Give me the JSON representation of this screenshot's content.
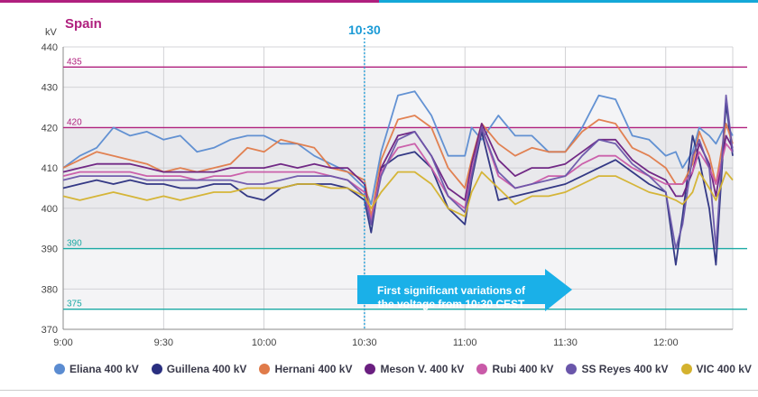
{
  "chart_data": {
    "type": "line",
    "title": "Spain",
    "ylabel": "kV",
    "xlabel": "",
    "ylim": [
      370,
      440
    ],
    "xlim_minutes": [
      0,
      200
    ],
    "grid": true,
    "legend_placement": "bottom",
    "y_ticks": [
      "370",
      "380",
      "390",
      "400",
      "410",
      "420",
      "430",
      "440"
    ],
    "x_ticks": [
      {
        "label": "9:00",
        "minute": 0
      },
      {
        "label": "9:30",
        "minute": 30
      },
      {
        "label": "10:00",
        "minute": 60
      },
      {
        "label": "10:30",
        "minute": 90
      },
      {
        "label": "11:00",
        "minute": 120
      },
      {
        "label": "11:30",
        "minute": 150
      },
      {
        "label": "12:00",
        "minute": 180
      }
    ],
    "reference_lines": [
      {
        "label": "435",
        "value": 435,
        "color": "#b0207e"
      },
      {
        "label": "420",
        "value": 420,
        "color": "#b0207e"
      },
      {
        "label": "390",
        "value": 390,
        "color": "#1aa9a4"
      },
      {
        "label": "375",
        "value": 375,
        "color": "#1aa9a4"
      }
    ],
    "event": {
      "label": "10:30",
      "minute": 90,
      "color": "#1a9ad6"
    },
    "annotation": {
      "lines": [
        "First significant variations of",
        "the voltage from 10:30 CEST"
      ],
      "color": "#1ab0e8",
      "text_color": "#ffffff"
    },
    "x_unit": "minutes after 9:00",
    "series": [
      {
        "name": "Eliana 400 kV",
        "color": "#5b8cd1",
        "x": [
          0,
          5,
          10,
          15,
          20,
          25,
          30,
          35,
          40,
          45,
          50,
          55,
          60,
          65,
          70,
          75,
          80,
          85,
          90,
          92,
          95,
          100,
          105,
          110,
          115,
          120,
          122,
          125,
          130,
          135,
          140,
          145,
          150,
          155,
          160,
          165,
          170,
          175,
          180,
          183,
          185,
          188,
          190,
          193,
          195,
          198,
          200
        ],
        "y": [
          410,
          413,
          415,
          420,
          418,
          419,
          417,
          418,
          414,
          415,
          417,
          418,
          418,
          416,
          416,
          413,
          411,
          409,
          405,
          401,
          414,
          428,
          429,
          423,
          413,
          413,
          420,
          417,
          423,
          418,
          418,
          414,
          414,
          420,
          428,
          427,
          418,
          417,
          413,
          414,
          410,
          414,
          420,
          418,
          416,
          421,
          418
        ]
      },
      {
        "name": "Guillena 400 kV",
        "color": "#2a2f80",
        "x": [
          0,
          5,
          10,
          15,
          20,
          25,
          30,
          35,
          40,
          45,
          50,
          55,
          60,
          65,
          70,
          75,
          80,
          85,
          90,
          92,
          95,
          100,
          105,
          110,
          115,
          120,
          122,
          125,
          130,
          135,
          140,
          145,
          150,
          155,
          160,
          165,
          170,
          175,
          180,
          183,
          185,
          188,
          190,
          193,
          195,
          198,
          200
        ],
        "y": [
          405,
          406,
          407,
          406,
          407,
          406,
          406,
          405,
          405,
          406,
          406,
          403,
          402,
          405,
          406,
          406,
          406,
          405,
          402,
          394,
          410,
          413,
          414,
          410,
          400,
          396,
          407,
          419,
          402,
          403,
          404,
          405,
          406,
          408,
          410,
          412,
          409,
          406,
          404,
          386,
          398,
          418,
          412,
          400,
          386,
          426,
          413
        ]
      },
      {
        "name": "Hernani 400 kV",
        "color": "#e07b4a",
        "x": [
          0,
          5,
          10,
          15,
          20,
          25,
          30,
          35,
          40,
          45,
          50,
          55,
          60,
          65,
          70,
          75,
          80,
          85,
          90,
          92,
          95,
          100,
          105,
          110,
          115,
          120,
          122,
          125,
          130,
          135,
          140,
          145,
          150,
          155,
          160,
          165,
          170,
          175,
          180,
          183,
          185,
          188,
          190,
          193,
          195,
          198,
          200
        ],
        "y": [
          410,
          412,
          414,
          413,
          412,
          411,
          409,
          410,
          409,
          410,
          411,
          415,
          414,
          417,
          416,
          415,
          410,
          409,
          407,
          398,
          412,
          422,
          423,
          420,
          410,
          405,
          412,
          421,
          416,
          413,
          415,
          414,
          414,
          419,
          422,
          421,
          415,
          413,
          410,
          406,
          406,
          411,
          419,
          413,
          406,
          421,
          416
        ]
      },
      {
        "name": "Meson V. 400 kV",
        "color": "#6a1f80",
        "x": [
          0,
          5,
          10,
          15,
          20,
          25,
          30,
          35,
          40,
          45,
          50,
          55,
          60,
          65,
          70,
          75,
          80,
          85,
          90,
          92,
          95,
          100,
          105,
          110,
          115,
          120,
          122,
          125,
          130,
          135,
          140,
          145,
          150,
          155,
          160,
          165,
          170,
          175,
          180,
          183,
          185,
          188,
          190,
          193,
          195,
          198,
          200
        ],
        "y": [
          409,
          410,
          411,
          411,
          411,
          410,
          409,
          409,
          409,
          409,
          410,
          410,
          410,
          411,
          410,
          411,
          410,
          410,
          406,
          396,
          410,
          418,
          419,
          413,
          405,
          402,
          411,
          421,
          412,
          408,
          410,
          410,
          411,
          414,
          417,
          417,
          412,
          409,
          407,
          403,
          403,
          409,
          416,
          411,
          403,
          418,
          415
        ]
      },
      {
        "name": "Rubi 400 kV",
        "color": "#c95aa8",
        "x": [
          0,
          5,
          10,
          15,
          20,
          25,
          30,
          35,
          40,
          45,
          50,
          55,
          60,
          65,
          70,
          75,
          80,
          85,
          90,
          92,
          95,
          100,
          105,
          110,
          115,
          120,
          122,
          125,
          130,
          135,
          140,
          145,
          150,
          155,
          160,
          165,
          170,
          175,
          180,
          183,
          185,
          188,
          190,
          193,
          195,
          198,
          200
        ],
        "y": [
          408,
          409,
          409,
          409,
          409,
          408,
          408,
          408,
          407,
          408,
          408,
          409,
          409,
          409,
          409,
          409,
          408,
          407,
          404,
          397,
          409,
          415,
          416,
          410,
          403,
          400,
          409,
          420,
          408,
          405,
          406,
          408,
          408,
          411,
          413,
          413,
          410,
          408,
          406,
          406,
          406,
          409,
          414,
          410,
          406,
          416,
          414
        ]
      },
      {
        "name": "SS Reyes 400 kV",
        "color": "#6a56aa",
        "x": [
          0,
          5,
          10,
          15,
          20,
          25,
          30,
          35,
          40,
          45,
          50,
          55,
          60,
          65,
          70,
          75,
          80,
          85,
          90,
          92,
          95,
          100,
          105,
          110,
          115,
          120,
          122,
          125,
          130,
          135,
          140,
          145,
          150,
          155,
          160,
          165,
          170,
          175,
          180,
          183,
          185,
          188,
          190,
          193,
          195,
          198,
          200
        ],
        "y": [
          407,
          408,
          408,
          408,
          408,
          407,
          407,
          407,
          407,
          407,
          407,
          406,
          406,
          407,
          408,
          408,
          408,
          407,
          403,
          396,
          408,
          417,
          419,
          413,
          403,
          399,
          408,
          420,
          409,
          405,
          406,
          407,
          408,
          413,
          417,
          416,
          411,
          408,
          404,
          390,
          396,
          413,
          417,
          410,
          390,
          428,
          414
        ]
      },
      {
        "name": "VIC 400 kV",
        "color": "#d4b22e",
        "x": [
          0,
          5,
          10,
          15,
          20,
          25,
          30,
          35,
          40,
          45,
          50,
          55,
          60,
          65,
          70,
          75,
          80,
          85,
          90,
          92,
          95,
          100,
          105,
          110,
          115,
          120,
          122,
          125,
          130,
          135,
          140,
          145,
          150,
          155,
          160,
          165,
          170,
          175,
          180,
          183,
          185,
          188,
          190,
          193,
          195,
          198,
          200
        ],
        "y": [
          403,
          402,
          403,
          404,
          403,
          402,
          403,
          402,
          403,
          404,
          404,
          405,
          405,
          405,
          406,
          406,
          405,
          405,
          403,
          400,
          404,
          409,
          409,
          406,
          400,
          398,
          404,
          409,
          405,
          401,
          403,
          403,
          404,
          406,
          408,
          408,
          406,
          404,
          403,
          402,
          401,
          404,
          409,
          405,
          402,
          409,
          407
        ]
      }
    ]
  }
}
